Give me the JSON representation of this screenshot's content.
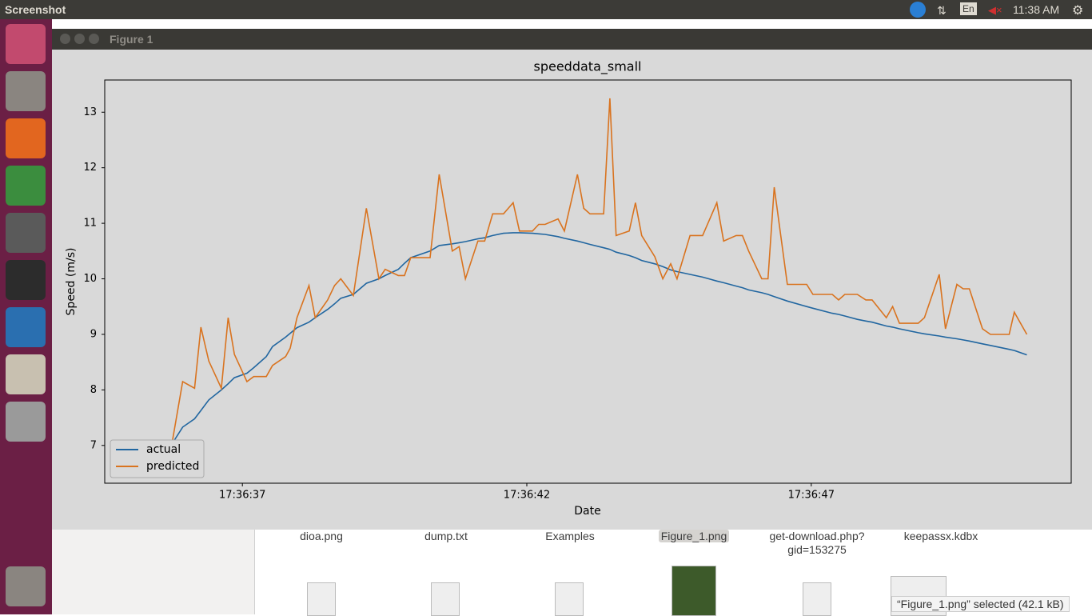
{
  "ui": {
    "app_title": "Screenshot",
    "keyboard": "En",
    "clock": "11:38 AM",
    "window_title": "Figure 1",
    "files": [
      "dioa.png",
      "dump.txt",
      "Examples",
      "Figure_1.png",
      "get-download.php?\ngid=153275",
      "keepassx.kdbx"
    ],
    "status": "“Figure_1.png” selected  (42.1 kB)"
  },
  "chart_data": {
    "type": "line",
    "title": "speeddata_small",
    "x_label": "Date",
    "y_label": "Speed (m/s)",
    "x": [
      35.62,
      35.74,
      35.95,
      36.16,
      36.27,
      36.41,
      36.63,
      36.75,
      36.86,
      37.08,
      37.2,
      37.42,
      37.53,
      37.76,
      37.84,
      37.96,
      38.17,
      38.28,
      38.5,
      38.62,
      38.73,
      38.95,
      39.18,
      39.4,
      39.51,
      39.74,
      39.85,
      39.96,
      40.3,
      40.46,
      40.69,
      40.81,
      40.92,
      41.14,
      41.26,
      41.4,
      41.59,
      41.76,
      41.87,
      42.1,
      42.21,
      42.32,
      42.55,
      42.66,
      42.89,
      43.0,
      43.11,
      43.35,
      43.46,
      43.57,
      43.8,
      43.91,
      44.02,
      44.25,
      44.39,
      44.53,
      44.64,
      44.87,
      45.09,
      45.34,
      45.46,
      45.68,
      45.79,
      45.9,
      46.13,
      46.24,
      46.35,
      46.58,
      46.92,
      47.03,
      47.37,
      47.48,
      47.59,
      47.81,
      47.96,
      48.07,
      48.32,
      48.43,
      48.55,
      48.88,
      48.99,
      49.25,
      49.36,
      49.56,
      49.67,
      49.78,
      50.01,
      50.15,
      50.48,
      50.57,
      50.79
    ],
    "series": [
      {
        "name": "actual",
        "color": "#2166a0",
        "values": [
          6.8,
          6.99,
          7.33,
          7.48,
          7.63,
          7.82,
          8.0,
          8.11,
          8.22,
          8.3,
          8.4,
          8.6,
          8.78,
          8.95,
          9.02,
          9.12,
          9.22,
          9.3,
          9.45,
          9.55,
          9.65,
          9.72,
          9.92,
          10.0,
          10.06,
          10.17,
          10.28,
          10.38,
          10.5,
          10.6,
          10.63,
          10.65,
          10.67,
          10.72,
          10.74,
          10.78,
          10.82,
          10.83,
          10.83,
          10.82,
          10.81,
          10.8,
          10.76,
          10.73,
          10.68,
          10.65,
          10.62,
          10.56,
          10.53,
          10.48,
          10.42,
          10.38,
          10.33,
          10.27,
          10.22,
          10.16,
          10.13,
          10.08,
          10.03,
          9.96,
          9.93,
          9.87,
          9.84,
          9.8,
          9.75,
          9.72,
          9.68,
          9.6,
          9.5,
          9.47,
          9.38,
          9.36,
          9.33,
          9.27,
          9.24,
          9.22,
          9.15,
          9.13,
          9.1,
          9.03,
          9.01,
          8.97,
          8.95,
          8.92,
          8.9,
          8.88,
          8.83,
          8.8,
          8.73,
          8.71,
          8.63
        ]
      },
      {
        "name": "predicted",
        "color": "#d9731f",
        "values": [
          6.5,
          6.9,
          8.15,
          8.03,
          9.13,
          8.52,
          8.03,
          9.3,
          8.64,
          8.15,
          8.24,
          8.24,
          8.44,
          8.6,
          8.75,
          9.3,
          9.88,
          9.3,
          9.62,
          9.88,
          10.0,
          9.7,
          11.27,
          10.0,
          10.17,
          10.06,
          10.06,
          10.38,
          10.38,
          11.88,
          10.5,
          10.58,
          10.0,
          10.68,
          10.68,
          11.17,
          11.17,
          11.37,
          10.86,
          10.86,
          10.98,
          10.98,
          11.08,
          10.86,
          11.88,
          11.27,
          11.17,
          11.17,
          13.25,
          10.78,
          10.86,
          11.37,
          10.78,
          10.4,
          10.0,
          10.27,
          10.0,
          10.78,
          10.78,
          11.37,
          10.68,
          10.78,
          10.78,
          10.5,
          10.0,
          10.0,
          11.65,
          9.9,
          9.9,
          9.72,
          9.72,
          9.62,
          9.72,
          9.72,
          9.62,
          9.62,
          9.3,
          9.5,
          9.2,
          9.2,
          9.3,
          10.08,
          9.1,
          9.9,
          9.82,
          9.82,
          9.1,
          9.0,
          9.0,
          9.4,
          9.0
        ]
      }
    ],
    "xlim": [
      34.58,
      51.57
    ],
    "xticks": [
      {
        "value": 37,
        "label": "17:36:37"
      },
      {
        "value": 42,
        "label": "17:36:42"
      },
      {
        "value": 47,
        "label": "17:36:47"
      }
    ],
    "ylim": [
      6.32,
      13.58
    ],
    "yticks": [
      7,
      8,
      9,
      10,
      11,
      12,
      13
    ],
    "grid": false,
    "legend": "lower left"
  }
}
